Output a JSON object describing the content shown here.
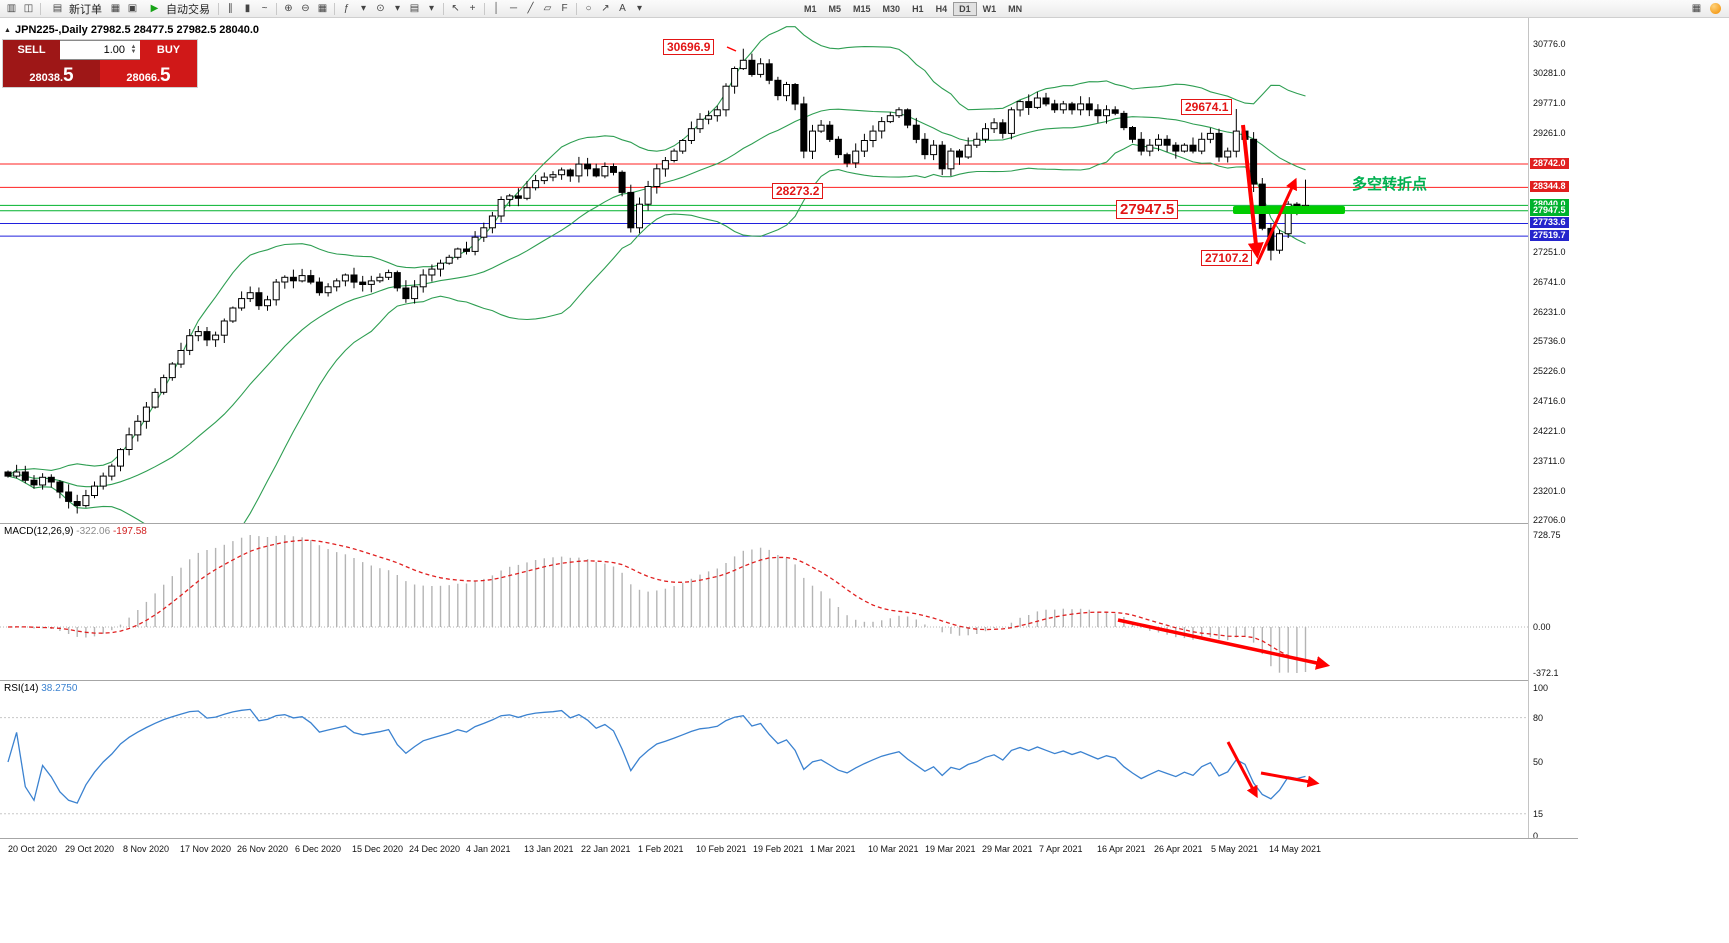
{
  "toolbar": {
    "new_order_label": "新订单",
    "auto_trading_label": "自动交易",
    "timeframes": [
      "M1",
      "M5",
      "M15",
      "M30",
      "H1",
      "H4",
      "D1",
      "W1",
      "MN"
    ],
    "active_timeframe": "D1",
    "icons": {
      "new_chart": "▥",
      "profiles": "◫",
      "doc": "▤",
      "window": "▦",
      "tester": "▣",
      "play": "▶",
      "bars": "∥",
      "candles": "▮",
      "linechart": "~",
      "zoom_in": "⊕",
      "zoom_out": "⊖",
      "tile": "▦",
      "indicators": "ƒ",
      "dd": "▾",
      "periods": "⊙",
      "templates": "▤",
      "cursor": "↖",
      "crosshair": "+",
      "vline": "│",
      "hline": "─",
      "tline": "╱",
      "channel": "▱",
      "fibo": "F",
      "shapes": "○",
      "arrows": "↗",
      "text": "A",
      "grid": "▦"
    }
  },
  "window": {
    "panel_toggle": "▲",
    "title_line": "JPN225-,Daily 27982.5 28477.5 27982.5 28040.0"
  },
  "trade_panel": {
    "sell_label": "SELL",
    "buy_label": "BUY",
    "volume": "1.00",
    "spin_up": "▲",
    "spin_down": "▼",
    "sell_price": "28038.",
    "sell_big": "5",
    "buy_price": "28066.",
    "buy_big": "5"
  },
  "annotations": {
    "peak": "30696.9",
    "swing_high": "29674.1",
    "level_mid": "28273.2",
    "support": "27947.5",
    "crash_low": "27107.2",
    "turning_point": "多空转折点"
  },
  "levels": {
    "lines": [
      {
        "value": 28742.0,
        "color": "#ff2020"
      },
      {
        "value": 28344.8,
        "color": "#ff2020"
      },
      {
        "value": 28040.0,
        "color": "#00b22d"
      },
      {
        "value": 27947.5,
        "color": "#00b22d"
      },
      {
        "value": 27733.6,
        "color": "#2020dd"
      },
      {
        "value": 27519.7,
        "color": "#2020dd"
      }
    ],
    "badges": [
      {
        "text": "28742.0",
        "value": 28742.0,
        "bg": "#e02020"
      },
      {
        "text": "28344.8",
        "value": 28344.8,
        "bg": "#e02020"
      },
      {
        "text": "28040.0",
        "value": 28040.0,
        "bg": "#00b22d"
      },
      {
        "text": "27947.5",
        "value": 27947.5,
        "bg": "#00b22d"
      },
      {
        "text": "27733.6",
        "value": 27733.6,
        "bg": "#2525cc"
      },
      {
        "text": "27519.7",
        "value": 27519.7,
        "bg": "#2525cc"
      }
    ]
  },
  "price_axis": {
    "labels": [
      {
        "text": "30776.0",
        "value": 30776.0
      },
      {
        "text": "30281.0",
        "value": 30281.0
      },
      {
        "text": "29771.0",
        "value": 29771.0
      },
      {
        "text": "29261.0",
        "value": 29261.0
      },
      {
        "text": "27251.0",
        "value": 27251.0
      },
      {
        "text": "26741.0",
        "value": 26741.0
      },
      {
        "text": "26231.0",
        "value": 26231.0
      },
      {
        "text": "25736.0",
        "value": 25736.0
      },
      {
        "text": "25226.0",
        "value": 25226.0
      },
      {
        "text": "24716.0",
        "value": 24716.0
      },
      {
        "text": "24221.0",
        "value": 24221.0
      },
      {
        "text": "23711.0",
        "value": 23711.0
      },
      {
        "text": "23201.0",
        "value": 23201.0
      },
      {
        "text": "22706.0",
        "value": 22706.0
      }
    ]
  },
  "macd": {
    "name": "MACD(12,26,9)",
    "value_main": "-322.06",
    "value_signal": "-197.58",
    "axis": [
      {
        "text": "728.75",
        "pos": "top"
      },
      {
        "text": "0.00",
        "pos": "zero"
      },
      {
        "text": "-372.1",
        "pos": "bottom"
      }
    ]
  },
  "rsi": {
    "name": "RSI(14)",
    "value": "38.2750",
    "levels": [
      80,
      15
    ],
    "axis_labels": [
      {
        "text": "100",
        "value": 100
      },
      {
        "text": "80",
        "value": 80
      },
      {
        "text": "50",
        "value": 50
      },
      {
        "text": "15",
        "value": 15
      },
      {
        "text": "0",
        "value": 0
      }
    ]
  },
  "date_axis": [
    "20 Oct 2020",
    "29 Oct 2020",
    "8 Nov 2020",
    "17 Nov 2020",
    "26 Nov 2020",
    "6 Dec 2020",
    "15 Dec 2020",
    "24 Dec 2020",
    "4 Jan 2021",
    "13 Jan 2021",
    "22 Jan 2021",
    "1 Feb 2021",
    "10 Feb 2021",
    "19 Feb 2021",
    "1 Mar 2021",
    "10 Mar 2021",
    "19 Mar 2021",
    "29 Mar 2021",
    "7 Apr 2021",
    "16 Apr 2021",
    "26 Apr 2021",
    "5 May 2021",
    "14 May 2021"
  ],
  "colors": {
    "bull": "#ffffff",
    "bear": "#000000",
    "outline": "#000000",
    "bollinger": "#2e9e52",
    "macd_hist": "#b4b4b4",
    "macd_signal": "#e02020",
    "rsi_line": "#3b82d0",
    "arrow": "#ff0000",
    "highlight": "#00cc00"
  },
  "chart_data": {
    "type": "candlestick",
    "symbol": "JPN225-",
    "timeframe": "Daily",
    "last_ohlc": {
      "open": 27982.5,
      "high": 28477.5,
      "low": 27982.5,
      "close": 28040.0
    },
    "y_range": {
      "top": 30776.0,
      "bottom": 22706.0
    },
    "bollinger": {
      "period": 20,
      "deviation": 2
    },
    "markers": {
      "peak_index": 85,
      "peak_high": 30696.9,
      "swing_high_index": 142,
      "swing_high": 29674.1,
      "crash_index": 146,
      "crash_low": 27107.2
    },
    "closes": [
      23450,
      23520,
      23380,
      23300,
      23430,
      23350,
      23180,
      23020,
      22950,
      23120,
      23280,
      23450,
      23620,
      23900,
      24150,
      24380,
      24620,
      24870,
      25120,
      25350,
      25580,
      25830,
      25900,
      25760,
      25840,
      26080,
      26300,
      26460,
      26560,
      26340,
      26440,
      26740,
      26820,
      26760,
      26850,
      26740,
      26560,
      26660,
      26760,
      26860,
      26740,
      26700,
      26760,
      26820,
      26900,
      26640,
      26460,
      26660,
      26860,
      26960,
      27060,
      27160,
      27300,
      27260,
      27500,
      27660,
      27860,
      28140,
      28200,
      28160,
      28340,
      28460,
      28520,
      28560,
      28640,
      28540,
      28740,
      28660,
      28540,
      28700,
      28600,
      28260,
      27660,
      28060,
      28360,
      28660,
      28800,
      28960,
      29140,
      29340,
      29500,
      29560,
      29660,
      30060,
      30360,
      30500,
      30260,
      30440,
      30160,
      29900,
      30090,
      29760,
      28960,
      29300,
      29400,
      29160,
      28900,
      28760,
      28960,
      29140,
      29300,
      29460,
      29560,
      29660,
      29400,
      29160,
      28900,
      29060,
      28660,
      28960,
      28860,
      29060,
      29160,
      29340,
      29440,
      29260,
      29660,
      29800,
      29700,
      29860,
      29760,
      29660,
      29760,
      29660,
      29760,
      29660,
      29560,
      29660,
      29600,
      29360,
      29160,
      28960,
      29060,
      29160,
      29060,
      28960,
      29060,
      28960,
      29160,
      29260,
      28860,
      28960,
      29300,
      29160,
      28400,
      27650,
      27280,
      27560,
      28060,
      27960,
      28040
    ]
  }
}
